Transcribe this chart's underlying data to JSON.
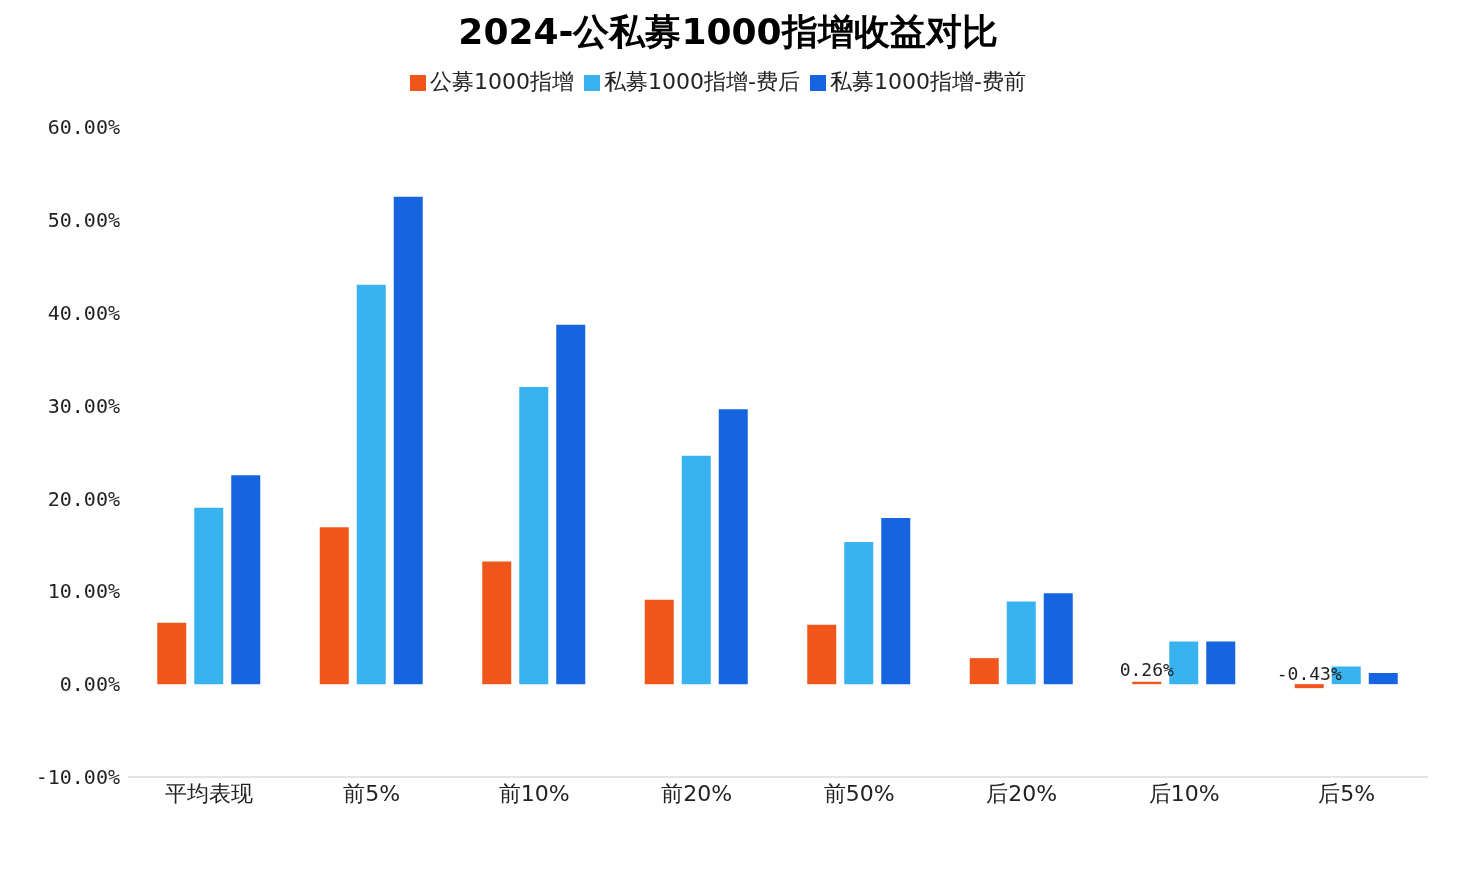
{
  "chart_data": {
    "type": "bar",
    "title": "2024-公私募1000指增收益对比",
    "categories": [
      "平均表现",
      "前5%",
      "前10%",
      "前20%",
      "前50%",
      "后20%",
      "后10%",
      "后5%"
    ],
    "series": [
      {
        "name": "公募1000指增",
        "color": "#f0561a",
        "values": [
          6.6,
          16.9,
          13.2,
          9.1,
          6.4,
          2.8,
          0.26,
          -0.43
        ],
        "value_labels": [
          null,
          null,
          null,
          null,
          null,
          null,
          "0.26%",
          "-0.43%"
        ]
      },
      {
        "name": "私募1000指增-费后",
        "color": "#38b3ef",
        "values": [
          19.0,
          43.0,
          32.0,
          24.6,
          15.3,
          8.9,
          4.6,
          1.9
        ]
      },
      {
        "name": "私募1000指增-费前",
        "color": "#1764e0",
        "values": [
          22.5,
          52.5,
          38.7,
          29.6,
          17.9,
          9.8,
          4.6,
          1.2
        ]
      }
    ],
    "ylim": [
      -10,
      60
    ],
    "yticks": [
      {
        "value": -10,
        "label": "-10.00%"
      },
      {
        "value": 0,
        "label": "0.00%"
      },
      {
        "value": 10,
        "label": "10.00%"
      },
      {
        "value": 20,
        "label": "20.00%"
      },
      {
        "value": 30,
        "label": "30.00%"
      },
      {
        "value": 40,
        "label": "40.00%"
      },
      {
        "value": 50,
        "label": "50.00%"
      },
      {
        "value": 60,
        "label": "60.00%"
      }
    ],
    "grid": false,
    "legend": "top"
  }
}
